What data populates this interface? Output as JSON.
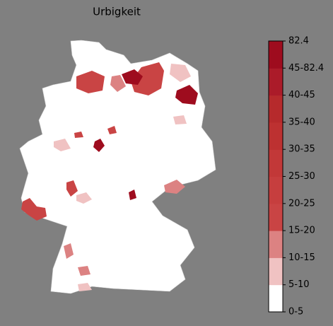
{
  "title": "Urbigkeit",
  "colorbar": {
    "labels": [
      "0-5",
      "5-10",
      "10-15",
      "15-20",
      "20-25",
      "25-30",
      "30-35",
      "35-40",
      "40-45",
      "45-82.4",
      "82.4"
    ],
    "colors": [
      "#ffffff",
      "#f0c2c2",
      "#dc8282",
      "#c94444",
      "#c63e3e",
      "#c23838",
      "#bd3131",
      "#b62a2c",
      "#ab1b29",
      "#9e0c1e"
    ]
  }
}
